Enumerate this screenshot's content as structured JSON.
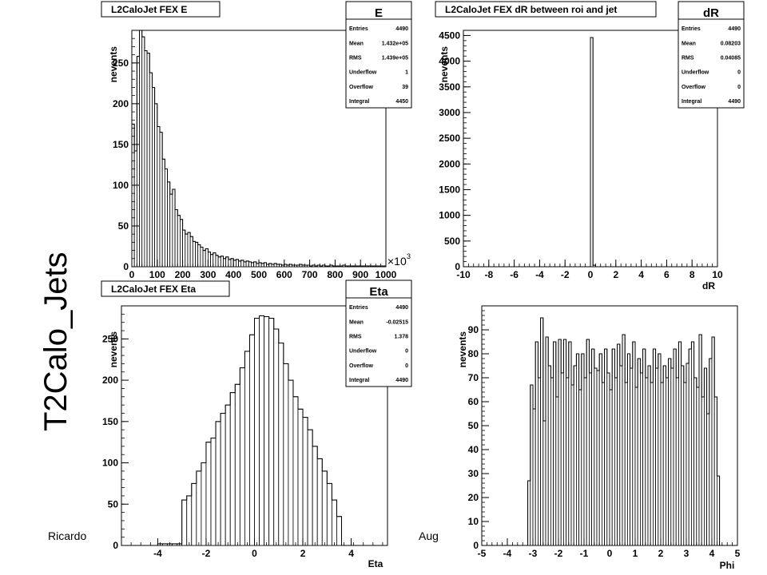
{
  "page": {
    "side_title": "T2Calo_Jets",
    "footer_left": "Ricardo",
    "footer_right": "Aug"
  },
  "chart_data": [
    {
      "id": "e",
      "type": "histogram",
      "title": "L2CaloJet FEX E",
      "xlabel": "",
      "ylabel": "nevents",
      "x_exponent_label": "×10",
      "x_exponent_power": "3",
      "xlim": [
        0,
        1000
      ],
      "ylim": [
        0,
        290
      ],
      "xticks": [
        0,
        100,
        200,
        300,
        400,
        500,
        600,
        700,
        800,
        900,
        1000
      ],
      "yticks": [
        0,
        50,
        100,
        150,
        200,
        250
      ],
      "x_start": 0,
      "bin_width": 10,
      "values": [
        175,
        142,
        258,
        290,
        282,
        265,
        262,
        238,
        220,
        200,
        172,
        165,
        132,
        120,
        104,
        89,
        95,
        70,
        63,
        58,
        45,
        40,
        42,
        37,
        31,
        30,
        27,
        24,
        20,
        22,
        18,
        15,
        17,
        14,
        12,
        13,
        10,
        12,
        9,
        10,
        8,
        9,
        7,
        8,
        6,
        7,
        6,
        5,
        6,
        4,
        5,
        4,
        5,
        3,
        4,
        3,
        4,
        3,
        3,
        2,
        3,
        2,
        3,
        2,
        2,
        2,
        3,
        2,
        2,
        2,
        1,
        2,
        1,
        2,
        1,
        2,
        1,
        1,
        2,
        1,
        1,
        1,
        1,
        2,
        1,
        1,
        1,
        1,
        1,
        1,
        1,
        1,
        1,
        1,
        1,
        1,
        1,
        1,
        1,
        1
      ],
      "stats": {
        "name": "E",
        "rows": [
          {
            "label": "Entries",
            "value": "4490"
          },
          {
            "label": "Mean",
            "value": "1.432e+05"
          },
          {
            "label": "RMS",
            "value": "1.439e+05"
          },
          {
            "label": "Underflow",
            "value": "1"
          },
          {
            "label": "Overflow",
            "value": "39"
          },
          {
            "label": "Integral",
            "value": "4450"
          }
        ]
      }
    },
    {
      "id": "dr",
      "type": "histogram",
      "title": "L2CaloJet FEX dR between roi and jet",
      "xlabel": "dR",
      "ylabel": "nevents",
      "xlim": [
        -10,
        10
      ],
      "ylim": [
        0,
        4600
      ],
      "xticks": [
        -10,
        -8,
        -6,
        -4,
        -2,
        0,
        2,
        4,
        6,
        8,
        10
      ],
      "yticks": [
        0,
        500,
        1000,
        1500,
        2000,
        2500,
        3000,
        3500,
        4000,
        4500
      ],
      "x_start": 0,
      "bin_width": 0.2,
      "values": [
        4460,
        30
      ],
      "stats": {
        "name": "dR",
        "rows": [
          {
            "label": "Entries",
            "value": "4490"
          },
          {
            "label": "Mean",
            "value": "0.08203"
          },
          {
            "label": "RMS",
            "value": "0.04085"
          },
          {
            "label": "Underflow",
            "value": "0"
          },
          {
            "label": "Overflow",
            "value": "0"
          },
          {
            "label": "Integral",
            "value": "4490"
          }
        ]
      }
    },
    {
      "id": "eta",
      "type": "histogram",
      "title": "L2CaloJet FEX Eta",
      "xlabel": "Eta",
      "ylabel": "nevents",
      "xlim": [
        -5.5,
        5.5
      ],
      "ylim": [
        0,
        290
      ],
      "xticks": [
        -4,
        -2,
        0,
        2,
        4
      ],
      "yticks": [
        0,
        50,
        100,
        150,
        200,
        250
      ],
      "x_start": -4.0,
      "bin_width": 0.2,
      "values": [
        2,
        2,
        2,
        2,
        2,
        55,
        60,
        75,
        90,
        100,
        125,
        130,
        150,
        160,
        170,
        185,
        195,
        215,
        235,
        255,
        275,
        278,
        277,
        275,
        262,
        245,
        220,
        200,
        180,
        165,
        155,
        140,
        120,
        105,
        90,
        75,
        55,
        35
      ],
      "stats": {
        "name": "Eta",
        "rows": [
          {
            "label": "Entries",
            "value": "4490"
          },
          {
            "label": "Mean",
            "value": "-0.02515"
          },
          {
            "label": "RMS",
            "value": "1.378"
          },
          {
            "label": "Underflow",
            "value": "0"
          },
          {
            "label": "Overflow",
            "value": "0"
          },
          {
            "label": "Integral",
            "value": "4490"
          }
        ]
      }
    },
    {
      "id": "phi",
      "type": "histogram",
      "title": "",
      "xlabel": "Phi",
      "ylabel": "nevents",
      "xlim": [
        -5,
        5
      ],
      "ylim": [
        0,
        100
      ],
      "xticks": [
        -5,
        -4,
        -3,
        -2,
        -1,
        0,
        1,
        2,
        3,
        4,
        5
      ],
      "yticks": [
        0,
        10,
        20,
        30,
        40,
        50,
        60,
        70,
        80,
        90
      ],
      "x_start": -3.2,
      "bin_width": 0.1,
      "values": [
        27,
        67,
        57,
        85,
        70,
        95,
        52,
        87,
        75,
        70,
        85,
        62,
        86,
        72,
        86,
        70,
        85,
        67,
        75,
        80,
        65,
        80,
        70,
        86,
        72,
        82,
        74,
        73,
        80,
        68,
        82,
        72,
        65,
        82,
        70,
        84,
        75,
        88,
        68,
        80,
        74,
        85,
        66,
        78,
        72,
        82,
        70,
        75,
        68,
        82,
        74,
        80,
        68,
        75,
        70,
        78,
        74,
        82,
        70,
        85,
        75,
        68,
        76,
        82,
        85,
        70,
        66,
        88,
        62,
        74,
        55,
        78,
        87,
        62,
        29
      ]
    }
  ]
}
